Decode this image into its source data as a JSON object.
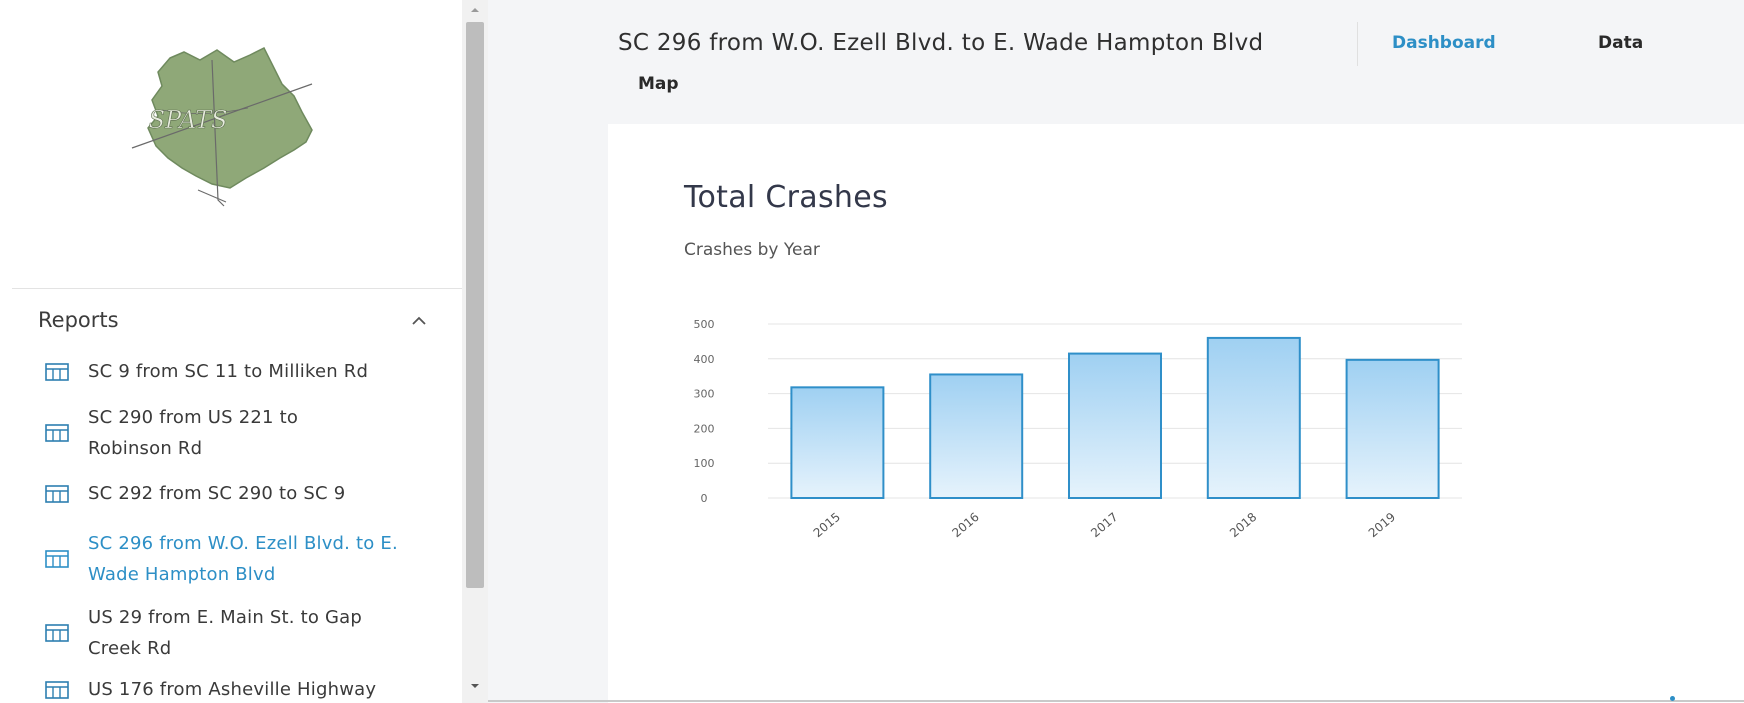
{
  "sidebar": {
    "logo_text": "SPATS",
    "reports_title": "Reports",
    "items": [
      {
        "label": "SC 9 from SC 11 to Milliken Rd",
        "active": false
      },
      {
        "label": "SC 290 from US 221 to Robinson Rd",
        "active": false
      },
      {
        "label": "SC 292 from SC 290 to SC 9",
        "active": false
      },
      {
        "label": "SC 296 from W.O. Ezell Blvd. to E. Wade Hampton Blvd",
        "active": true
      },
      {
        "label": "US 29 from E. Main St. to Gap Creek Rd",
        "active": false
      },
      {
        "label": "US 176 from Asheville Highway",
        "active": false
      }
    ]
  },
  "header": {
    "route_title": "SC 296 from W.O. Ezell Blvd. to E. Wade Hampton Blvd",
    "nav_dashboard": "Dashboard",
    "nav_data": "Data",
    "nav_map": "Map"
  },
  "main": {
    "card_title": "Total Crashes",
    "card_subtitle": "Crashes by Year"
  },
  "colors": {
    "accent": "#2d8fc6",
    "bar_fill_top": "#9fd0f2",
    "bar_fill_bottom": "#e6f3fc",
    "bar_stroke": "#2f8fc9",
    "logo_fill": "#8fa878"
  },
  "chart_data": {
    "type": "bar",
    "title": "Total Crashes",
    "subtitle": "Crashes by Year",
    "categories": [
      "2015",
      "2016",
      "2017",
      "2018",
      "2019"
    ],
    "values": [
      318,
      355,
      415,
      460,
      397
    ],
    "ylim": [
      0,
      500
    ],
    "yticks": [
      0,
      100,
      200,
      300,
      400,
      500
    ],
    "xlabel": "",
    "ylabel": "",
    "grid": true,
    "legend": "none"
  }
}
